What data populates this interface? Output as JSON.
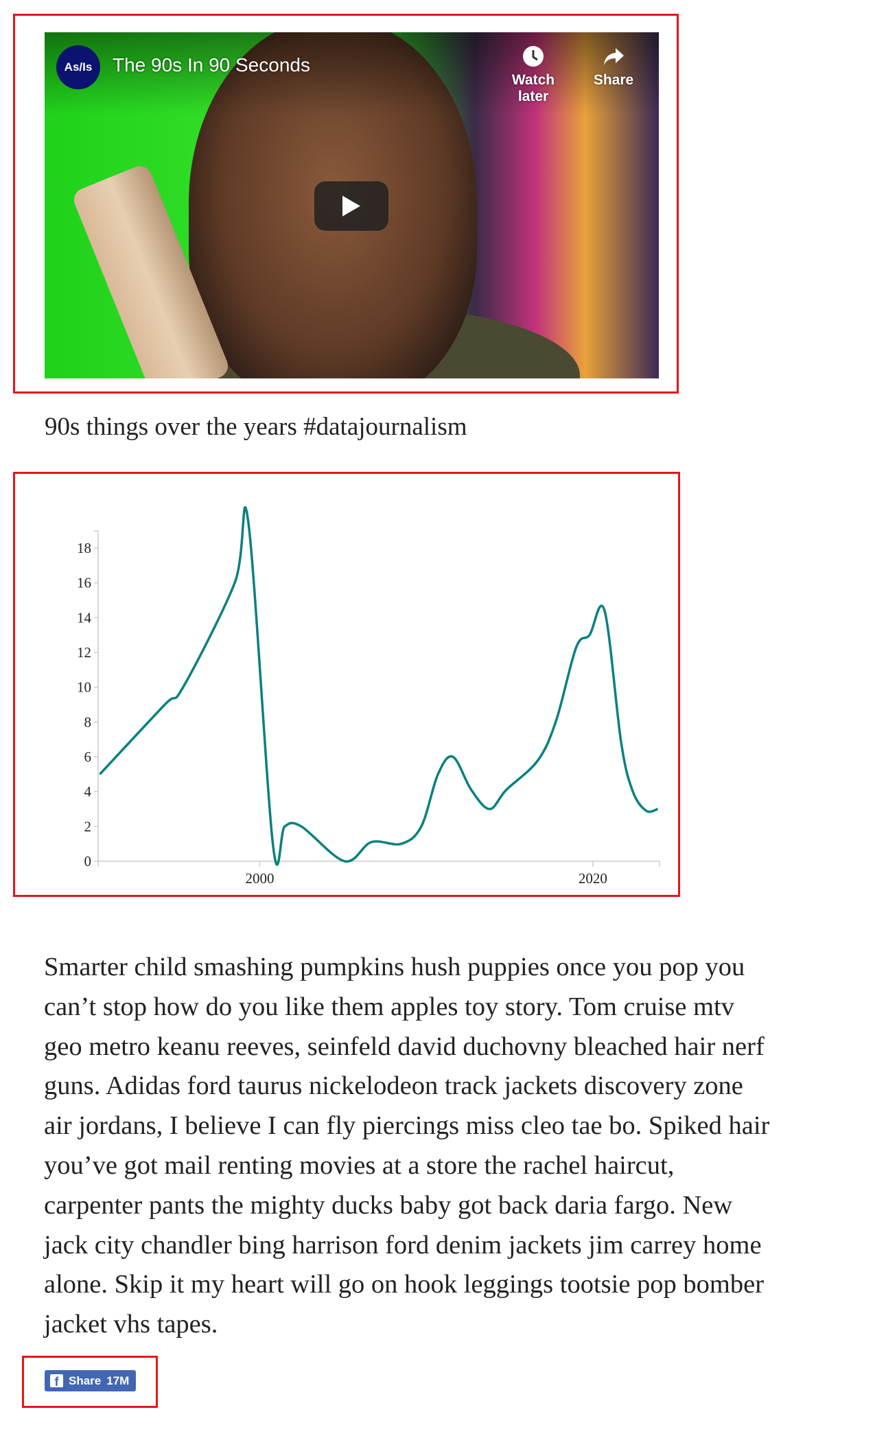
{
  "video": {
    "channel_avatar": "As/Is",
    "title": "The 90s In 90 Seconds",
    "watch_later": "Watch later",
    "share": "Share",
    "icons": {
      "watch_later": "clock-icon",
      "share": "share-arrow-icon",
      "play": "play-icon"
    }
  },
  "caption": "90s things over the years #datajournalism",
  "chart_data": {
    "type": "line",
    "title": "",
    "xlabel": "",
    "ylabel": "",
    "xlim": [
      1990.3,
      2024
    ],
    "ylim": [
      0,
      19
    ],
    "x_ticks": [
      "2000",
      "2020"
    ],
    "y_ticks": [
      "0",
      "2",
      "4",
      "6",
      "8",
      "10",
      "12",
      "14",
      "16",
      "18"
    ],
    "grid": false,
    "line_color": "#0a8080",
    "series": [
      {
        "x": [
          1990.4,
          1994.3,
          1995.4,
          1998.5,
          1999.3,
          2000.8,
          2001.5,
          2002.5,
          2005.1,
          2006.7,
          2008.5,
          2009.7,
          2010.7,
          2011.6,
          2012.7,
          2013.8,
          2014.8,
          2016.7,
          2017.8,
          2019.0,
          2019.8,
          2020.7,
          2021.7,
          2022.4,
          2023.2,
          2023.9
        ],
        "y": [
          5,
          9,
          10,
          16,
          19.6,
          0.9,
          2,
          2,
          0,
          1.1,
          1,
          2,
          5,
          6,
          4.1,
          3,
          4.1,
          5.8,
          8.1,
          12.3,
          13,
          14.4,
          6.8,
          4,
          2.9,
          3
        ]
      }
    ]
  },
  "article": {
    "lines": [
      "Smarter child smashing pumpkins hush puppies once you pop you",
      "can’t stop how do you like them apples toy story. Tom cruise mtv",
      "geo metro keanu reeves, seinfeld david duchovny bleached hair nerf",
      "guns. Adidas ford taurus nickelodeon track jackets discovery zone",
      "air jordans, I believe I can fly piercings miss cleo tae bo. Spiked hair",
      "you’ve got mail renting movies at a store the rachel haircut,",
      "carpenter pants the mighty ducks baby got back daria fargo. New",
      "jack city chandler bing harrison ford denim jackets jim carrey home",
      "alone. Skip it my heart will go on hook leggings tootsie pop bomber",
      "jacket vhs tapes."
    ]
  },
  "share_button": {
    "label": "Share",
    "count": "17M",
    "icon": "facebook-icon",
    "color": "#4267b2"
  },
  "highlight_color": "#e8141b"
}
